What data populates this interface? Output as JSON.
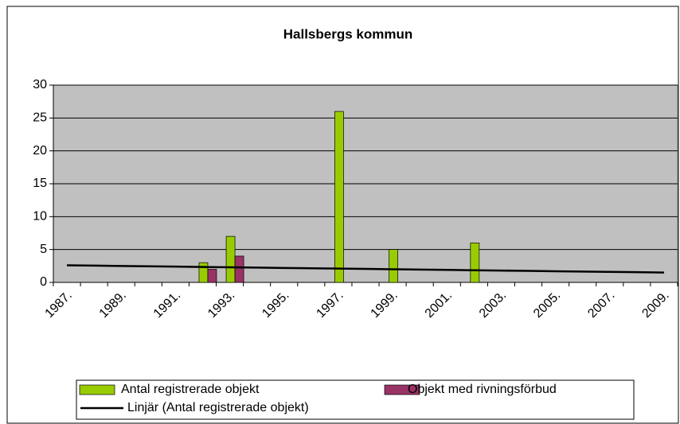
{
  "chart_data": {
    "type": "bar",
    "title": "Hallsbergs kommun",
    "categories": [
      "1987.",
      null,
      "1989.",
      null,
      "1991.",
      null,
      "1993.",
      null,
      "1995.",
      null,
      "1997.",
      null,
      "1999.",
      null,
      "2001.",
      null,
      "2003.",
      null,
      "2005.",
      null,
      "2007.",
      null,
      "2009."
    ],
    "series": [
      {
        "name": "Antal registrerade objekt",
        "color": "#99cc00",
        "values": [
          null,
          null,
          null,
          null,
          null,
          3,
          7,
          null,
          null,
          null,
          26,
          null,
          5,
          null,
          null,
          6,
          null,
          null,
          null,
          null,
          null,
          null,
          null
        ]
      },
      {
        "name": "Objekt med rivningsförbud",
        "color": "#993366",
        "values": [
          null,
          null,
          null,
          null,
          null,
          2,
          4,
          null,
          null,
          null,
          null,
          null,
          null,
          null,
          null,
          null,
          null,
          null,
          null,
          null,
          null,
          null,
          null
        ]
      },
      {
        "name": "Linjär (Antal registrerade objekt)",
        "color": "#000000",
        "type": "line",
        "values": [
          2.6,
          2.55,
          2.5,
          2.45,
          2.4,
          2.35,
          2.3,
          2.25,
          2.2,
          2.15,
          2.1,
          2.05,
          2.0,
          1.95,
          1.9,
          1.85,
          1.8,
          1.75,
          1.7,
          1.65,
          1.6,
          1.55,
          1.5
        ]
      }
    ],
    "ylim": [
      0,
      30
    ],
    "yticks": [
      0,
      5,
      10,
      15,
      20,
      25,
      30
    ],
    "grid": true,
    "legend": "bottom",
    "plot_background": "#c0c0c0"
  }
}
